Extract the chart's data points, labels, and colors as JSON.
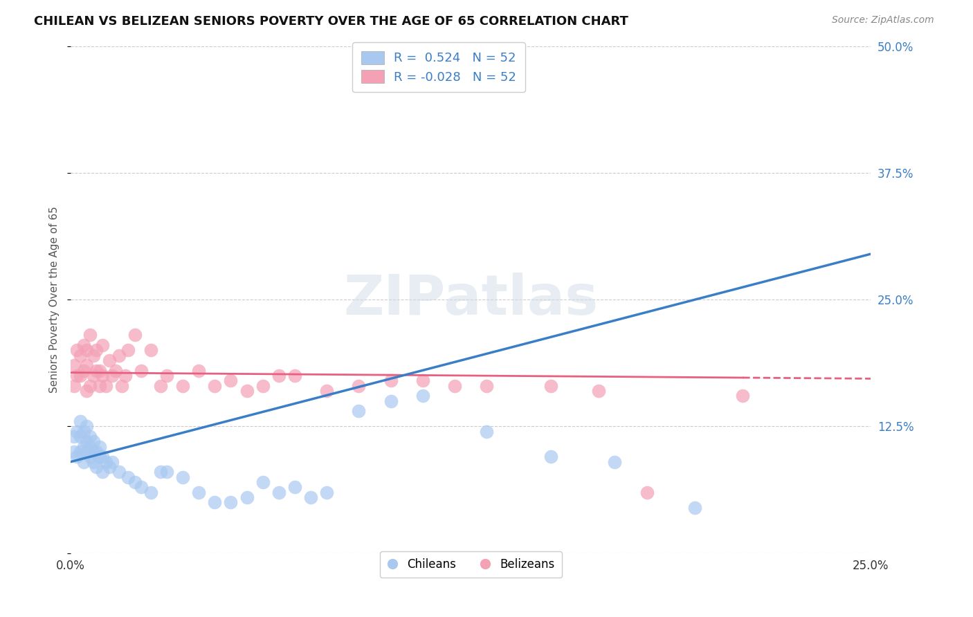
{
  "title": "CHILEAN VS BELIZEAN SENIORS POVERTY OVER THE AGE OF 65 CORRELATION CHART",
  "source": "Source: ZipAtlas.com",
  "ylabel": "Seniors Poverty Over the Age of 65",
  "xlim": [
    0.0,
    0.25
  ],
  "ylim": [
    0.0,
    0.5
  ],
  "xticks": [
    0.0,
    0.05,
    0.1,
    0.15,
    0.2,
    0.25
  ],
  "yticks": [
    0.0,
    0.125,
    0.25,
    0.375,
    0.5
  ],
  "r_chilean": 0.524,
  "n_chilean": 52,
  "r_belizean": -0.028,
  "n_belizean": 52,
  "chilean_color": "#A8C8F0",
  "belizean_color": "#F4A0B5",
  "chilean_line_color": "#3A7EC8",
  "belizean_line_color": "#E86080",
  "watermark_text": "ZIPatlas",
  "chilean_x": [
    0.001,
    0.001,
    0.002,
    0.002,
    0.003,
    0.003,
    0.003,
    0.004,
    0.004,
    0.004,
    0.005,
    0.005,
    0.005,
    0.006,
    0.006,
    0.006,
    0.007,
    0.007,
    0.007,
    0.008,
    0.008,
    0.009,
    0.009,
    0.01,
    0.01,
    0.011,
    0.012,
    0.013,
    0.015,
    0.018,
    0.02,
    0.022,
    0.025,
    0.028,
    0.03,
    0.035,
    0.04,
    0.045,
    0.05,
    0.055,
    0.06,
    0.065,
    0.07,
    0.075,
    0.08,
    0.09,
    0.1,
    0.11,
    0.13,
    0.15,
    0.17,
    0.195
  ],
  "chilean_y": [
    0.1,
    0.115,
    0.095,
    0.12,
    0.1,
    0.115,
    0.13,
    0.09,
    0.105,
    0.12,
    0.1,
    0.11,
    0.125,
    0.095,
    0.105,
    0.115,
    0.09,
    0.1,
    0.11,
    0.085,
    0.1,
    0.095,
    0.105,
    0.08,
    0.095,
    0.09,
    0.085,
    0.09,
    0.08,
    0.075,
    0.07,
    0.065,
    0.06,
    0.08,
    0.08,
    0.075,
    0.06,
    0.05,
    0.05,
    0.055,
    0.07,
    0.06,
    0.065,
    0.055,
    0.06,
    0.14,
    0.15,
    0.155,
    0.12,
    0.095,
    0.09,
    0.045
  ],
  "belizean_x": [
    0.001,
    0.001,
    0.002,
    0.002,
    0.003,
    0.003,
    0.004,
    0.004,
    0.005,
    0.005,
    0.005,
    0.006,
    0.006,
    0.007,
    0.007,
    0.008,
    0.008,
    0.009,
    0.009,
    0.01,
    0.01,
    0.011,
    0.012,
    0.013,
    0.014,
    0.015,
    0.016,
    0.017,
    0.018,
    0.02,
    0.022,
    0.025,
    0.028,
    0.03,
    0.035,
    0.04,
    0.045,
    0.05,
    0.055,
    0.06,
    0.065,
    0.07,
    0.08,
    0.09,
    0.1,
    0.11,
    0.12,
    0.13,
    0.15,
    0.165,
    0.18,
    0.21
  ],
  "belizean_y": [
    0.165,
    0.185,
    0.175,
    0.2,
    0.175,
    0.195,
    0.18,
    0.205,
    0.16,
    0.185,
    0.2,
    0.165,
    0.215,
    0.175,
    0.195,
    0.18,
    0.2,
    0.165,
    0.18,
    0.175,
    0.205,
    0.165,
    0.19,
    0.175,
    0.18,
    0.195,
    0.165,
    0.175,
    0.2,
    0.215,
    0.18,
    0.2,
    0.165,
    0.175,
    0.165,
    0.18,
    0.165,
    0.17,
    0.16,
    0.165,
    0.175,
    0.175,
    0.16,
    0.165,
    0.17,
    0.17,
    0.165,
    0.165,
    0.165,
    0.16,
    0.06,
    0.155
  ],
  "chilean_line_x0": 0.0,
  "chilean_line_y0": 0.09,
  "chilean_line_x1": 0.25,
  "chilean_line_y1": 0.295,
  "belizean_line_x0": 0.0,
  "belizean_line_y0": 0.178,
  "belizean_line_x1": 0.25,
  "belizean_line_y1": 0.172
}
